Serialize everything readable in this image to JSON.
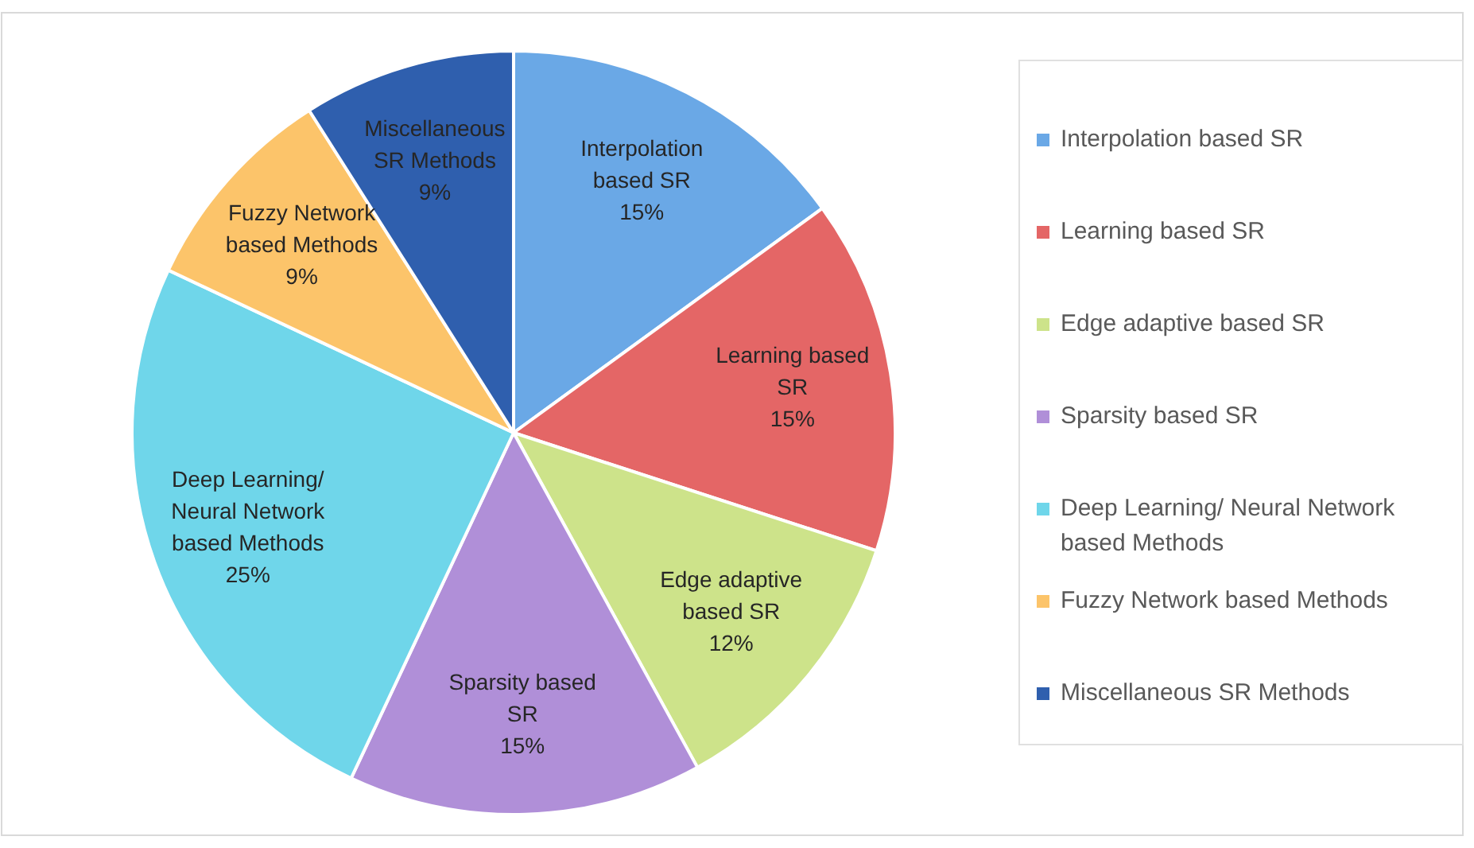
{
  "chart_data": {
    "type": "pie",
    "categories": [
      "Interpolation based SR",
      "Learning based SR",
      "Edge adaptive based SR",
      "Sparsity based SR",
      "Deep Learning/ Neural Network based Methods",
      "Fuzzy Network based Methods",
      "Miscellaneous SR Methods"
    ],
    "values": [
      15,
      15,
      12,
      15,
      25,
      9,
      9
    ],
    "value_labels": [
      "15%",
      "15%",
      "12%",
      "15%",
      "25%",
      "9%",
      "9%"
    ],
    "colors": [
      "#6aa8e6",
      "#e46666",
      "#cde38a",
      "#b08fd8",
      "#6fd6ea",
      "#fcc46a",
      "#2f5fae"
    ],
    "legend": "right"
  }
}
